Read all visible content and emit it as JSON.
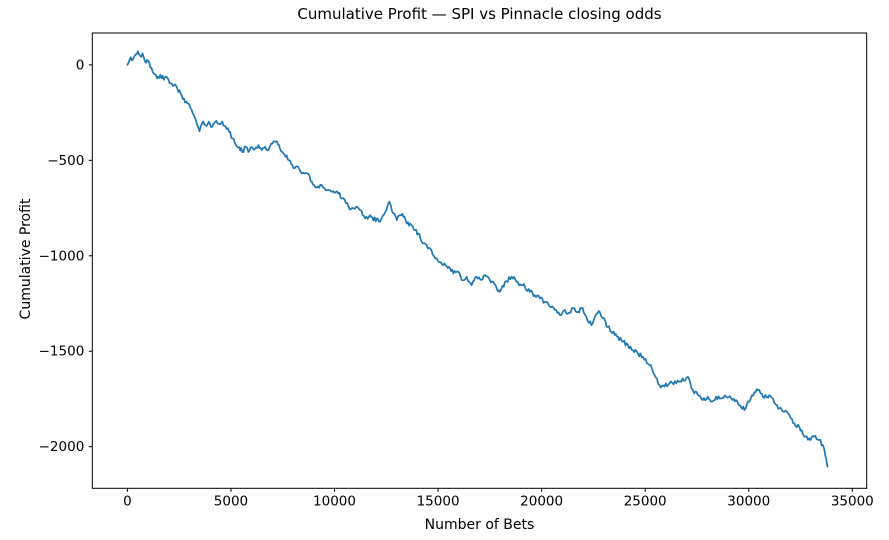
{
  "chart_data": {
    "type": "line",
    "title": "Cumulative Profit — SPI vs Pinnacle closing odds",
    "xlabel": "Number of Bets",
    "ylabel": "Cumulative Profit",
    "grid": false,
    "legend": null,
    "line_color": "#1f77b4",
    "axis_color": "#000000",
    "background_color": "#ffffff",
    "xlim": [
      -1695,
      35695
    ],
    "ylim": [
      -2218,
      167
    ],
    "x_ticks": [
      0,
      5000,
      10000,
      15000,
      20000,
      25000,
      30000,
      35000
    ],
    "y_ticks": [
      0,
      -500,
      -1000,
      -1500,
      -2000
    ],
    "series": [
      {
        "name": "cumulative-profit",
        "points": [
          [
            0,
            0
          ],
          [
            100,
            25
          ],
          [
            160,
            40
          ],
          [
            260,
            28
          ],
          [
            400,
            55
          ],
          [
            500,
            71
          ],
          [
            610,
            48
          ],
          [
            730,
            60
          ],
          [
            860,
            16
          ],
          [
            950,
            26
          ],
          [
            1110,
            -15
          ],
          [
            1270,
            -45
          ],
          [
            1430,
            -70
          ],
          [
            1590,
            -52
          ],
          [
            1760,
            -78
          ],
          [
            1930,
            -68
          ],
          [
            2090,
            -97
          ],
          [
            2250,
            -108
          ],
          [
            2410,
            -124
          ],
          [
            2570,
            -150
          ],
          [
            2730,
            -176
          ],
          [
            2890,
            -202
          ],
          [
            3050,
            -228
          ],
          [
            3210,
            -263
          ],
          [
            3370,
            -316
          ],
          [
            3480,
            -348
          ],
          [
            3610,
            -305
          ],
          [
            3770,
            -316
          ],
          [
            3930,
            -297
          ],
          [
            4090,
            -325
          ],
          [
            4250,
            -298
          ],
          [
            4410,
            -308
          ],
          [
            4580,
            -296
          ],
          [
            4740,
            -322
          ],
          [
            4910,
            -351
          ],
          [
            5070,
            -385
          ],
          [
            5240,
            -420
          ],
          [
            5400,
            -431
          ],
          [
            5550,
            -456
          ],
          [
            5715,
            -429
          ],
          [
            5845,
            -456
          ],
          [
            6000,
            -430
          ],
          [
            6170,
            -438
          ],
          [
            6330,
            -420
          ],
          [
            6490,
            -447
          ],
          [
            6650,
            -429
          ],
          [
            6810,
            -447
          ],
          [
            7000,
            -412
          ],
          [
            7160,
            -403
          ],
          [
            7320,
            -420
          ],
          [
            7480,
            -456
          ],
          [
            7640,
            -482
          ],
          [
            7800,
            -500
          ],
          [
            7960,
            -525
          ],
          [
            8120,
            -534
          ],
          [
            8350,
            -558
          ],
          [
            8670,
            -568
          ],
          [
            8910,
            -613
          ],
          [
            9070,
            -640
          ],
          [
            9320,
            -628
          ],
          [
            9640,
            -656
          ],
          [
            9880,
            -665
          ],
          [
            10120,
            -662
          ],
          [
            10360,
            -700
          ],
          [
            10680,
            -744
          ],
          [
            10920,
            -752
          ],
          [
            11240,
            -761
          ],
          [
            11480,
            -804
          ],
          [
            11720,
            -787
          ],
          [
            11880,
            -815
          ],
          [
            12050,
            -804
          ],
          [
            12200,
            -822
          ],
          [
            12450,
            -770
          ],
          [
            12650,
            -716
          ],
          [
            12850,
            -778
          ],
          [
            13010,
            -813
          ],
          [
            13170,
            -787
          ],
          [
            13330,
            -796
          ],
          [
            13490,
            -831
          ],
          [
            13650,
            -831
          ],
          [
            13890,
            -865
          ],
          [
            14050,
            -883
          ],
          [
            14210,
            -927
          ],
          [
            14450,
            -944
          ],
          [
            14610,
            -961
          ],
          [
            14930,
            -1014
          ],
          [
            15250,
            -1049
          ],
          [
            15580,
            -1066
          ],
          [
            15740,
            -1092
          ],
          [
            15980,
            -1084
          ],
          [
            16140,
            -1127
          ],
          [
            16380,
            -1110
          ],
          [
            16620,
            -1154
          ],
          [
            16860,
            -1110
          ],
          [
            17100,
            -1127
          ],
          [
            17260,
            -1101
          ],
          [
            17500,
            -1127
          ],
          [
            17830,
            -1171
          ],
          [
            17990,
            -1189
          ],
          [
            18230,
            -1136
          ],
          [
            18550,
            -1110
          ],
          [
            18790,
            -1136
          ],
          [
            19030,
            -1154
          ],
          [
            19190,
            -1162
          ],
          [
            19430,
            -1189
          ],
          [
            19670,
            -1206
          ],
          [
            19910,
            -1223
          ],
          [
            20150,
            -1241
          ],
          [
            20400,
            -1267
          ],
          [
            20640,
            -1284
          ],
          [
            20880,
            -1311
          ],
          [
            21120,
            -1284
          ],
          [
            21280,
            -1302
          ],
          [
            21520,
            -1275
          ],
          [
            21760,
            -1293
          ],
          [
            21920,
            -1275
          ],
          [
            22160,
            -1319
          ],
          [
            22400,
            -1363
          ],
          [
            22650,
            -1302
          ],
          [
            22800,
            -1293
          ],
          [
            22960,
            -1328
          ],
          [
            23200,
            -1372
          ],
          [
            23530,
            -1415
          ],
          [
            23680,
            -1424
          ],
          [
            23930,
            -1450
          ],
          [
            24170,
            -1468
          ],
          [
            24410,
            -1494
          ],
          [
            24650,
            -1511
          ],
          [
            24890,
            -1529
          ],
          [
            25210,
            -1572
          ],
          [
            25450,
            -1624
          ],
          [
            25690,
            -1677
          ],
          [
            25930,
            -1686
          ],
          [
            26180,
            -1668
          ],
          [
            26500,
            -1668
          ],
          [
            26740,
            -1660
          ],
          [
            26980,
            -1642
          ],
          [
            27060,
            -1634
          ],
          [
            27300,
            -1703
          ],
          [
            27540,
            -1730
          ],
          [
            27780,
            -1756
          ],
          [
            28020,
            -1738
          ],
          [
            28180,
            -1764
          ],
          [
            28420,
            -1738
          ],
          [
            28660,
            -1747
          ],
          [
            28900,
            -1738
          ],
          [
            29150,
            -1747
          ],
          [
            29390,
            -1756
          ],
          [
            29630,
            -1791
          ],
          [
            29790,
            -1808
          ],
          [
            30030,
            -1764
          ],
          [
            30270,
            -1715
          ],
          [
            30510,
            -1703
          ],
          [
            30750,
            -1745
          ],
          [
            30990,
            -1730
          ],
          [
            31240,
            -1773
          ],
          [
            31480,
            -1799
          ],
          [
            31720,
            -1817
          ],
          [
            31960,
            -1834
          ],
          [
            32200,
            -1878
          ],
          [
            32440,
            -1895
          ],
          [
            32680,
            -1948
          ],
          [
            32920,
            -1956
          ],
          [
            33160,
            -1948
          ],
          [
            33400,
            -1965
          ],
          [
            33640,
            -2010
          ],
          [
            33800,
            -2105
          ]
        ]
      }
    ]
  }
}
